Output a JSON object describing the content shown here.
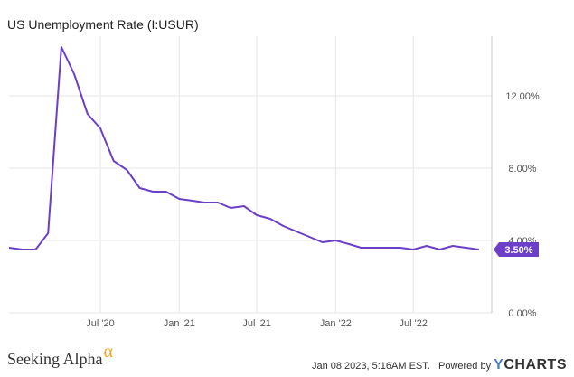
{
  "chart_data": {
    "type": "line",
    "title": "US Unemployment Rate (I:USUR)",
    "x_ticks": [
      "Jul '20",
      "Jan '21",
      "Jul '21",
      "Jan '22",
      "Jul '22"
    ],
    "x_tick_dates": [
      "2020-07-01",
      "2021-01-01",
      "2021-07-01",
      "2022-01-01",
      "2022-07-01"
    ],
    "y_ticks": [
      "0.00%",
      "4.00%",
      "8.00%",
      "12.00%"
    ],
    "y_tick_values": [
      0,
      4,
      8,
      12
    ],
    "ylim": [
      0,
      15.3
    ],
    "xlim": [
      "2019-12-01",
      "2022-12-31"
    ],
    "grid": true,
    "line_color": "#6c3fc9",
    "end_label": "3.50%",
    "series": [
      {
        "x": [
          "2019-12-01",
          "2020-01-01",
          "2020-02-01",
          "2020-03-01",
          "2020-04-01",
          "2020-05-01",
          "2020-06-01",
          "2020-07-01",
          "2020-08-01",
          "2020-09-01",
          "2020-10-01",
          "2020-11-01",
          "2020-12-01",
          "2021-01-01",
          "2021-02-01",
          "2021-03-01",
          "2021-04-01",
          "2021-05-01",
          "2021-06-01",
          "2021-07-01",
          "2021-08-01",
          "2021-09-01",
          "2021-10-01",
          "2021-11-01",
          "2021-12-01",
          "2022-01-01",
          "2022-02-01",
          "2022-03-01",
          "2022-04-01",
          "2022-05-01",
          "2022-06-01",
          "2022-07-01",
          "2022-08-01",
          "2022-09-01",
          "2022-10-01",
          "2022-11-01",
          "2022-12-01"
        ],
        "values": [
          3.6,
          3.5,
          3.5,
          4.4,
          14.7,
          13.2,
          11.0,
          10.2,
          8.4,
          7.9,
          6.9,
          6.7,
          6.7,
          6.3,
          6.2,
          6.1,
          6.1,
          5.8,
          5.9,
          5.4,
          5.2,
          4.8,
          4.5,
          4.2,
          3.9,
          4.0,
          3.8,
          3.6,
          3.6,
          3.6,
          3.6,
          3.5,
          3.7,
          3.5,
          3.7,
          3.6,
          3.5
        ]
      }
    ]
  },
  "footer": {
    "brand": "Seeking Alpha",
    "brand_symbol": "α",
    "timestamp": "Jan 08 2023, 5:16AM EST.",
    "powered_by": "Powered by",
    "logo_y": "Y",
    "logo_rest": "CHARTS"
  }
}
